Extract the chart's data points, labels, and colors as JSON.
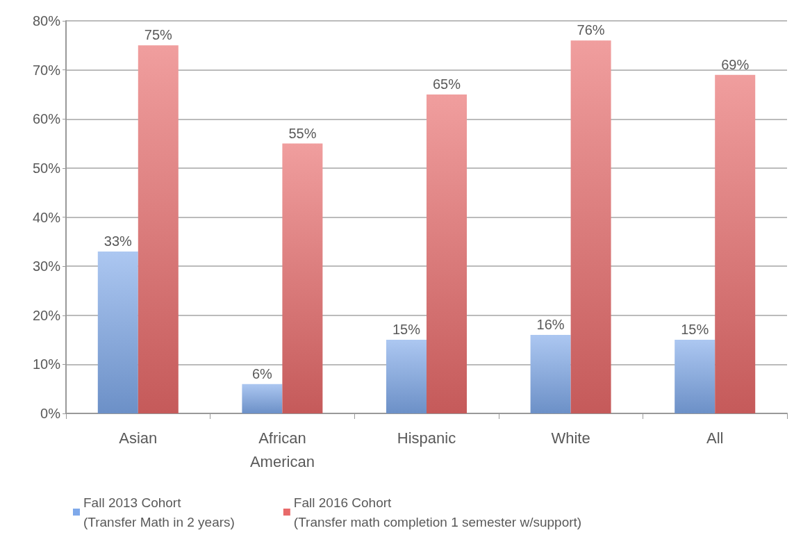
{
  "chart_data": {
    "type": "bar",
    "categories": [
      "Asian",
      "African\nAmerican",
      "Hispanic",
      "White",
      "All"
    ],
    "series": [
      {
        "name": "Fall 2013 Cohort\n(Transfer Math in 2 years)",
        "color": "#7fa9ea",
        "values": [
          33,
          6,
          15,
          16,
          15
        ],
        "value_labels": [
          "33%",
          "6%",
          "15%",
          "16%",
          "15%"
        ]
      },
      {
        "name": "Fall 2016 Cohort\n(Transfer math completion 1 semester w/support)",
        "color": "#e86a6a",
        "values": [
          75,
          55,
          65,
          76,
          69
        ],
        "value_labels": [
          "75%",
          "55%",
          "65%",
          "76%",
          "69%"
        ]
      }
    ],
    "ylim": [
      0,
      80
    ],
    "yticks": [
      {
        "value": 0,
        "label": "0%"
      },
      {
        "value": 10,
        "label": "10%"
      },
      {
        "value": 20,
        "label": "20%"
      },
      {
        "value": 30,
        "label": "30%"
      },
      {
        "value": 40,
        "label": "40%"
      },
      {
        "value": 50,
        "label": "50%"
      },
      {
        "value": 60,
        "label": "60%"
      },
      {
        "value": 70,
        "label": "70%"
      },
      {
        "value": 80,
        "label": "80%"
      }
    ],
    "grid": "y",
    "legend": "bottom left"
  }
}
